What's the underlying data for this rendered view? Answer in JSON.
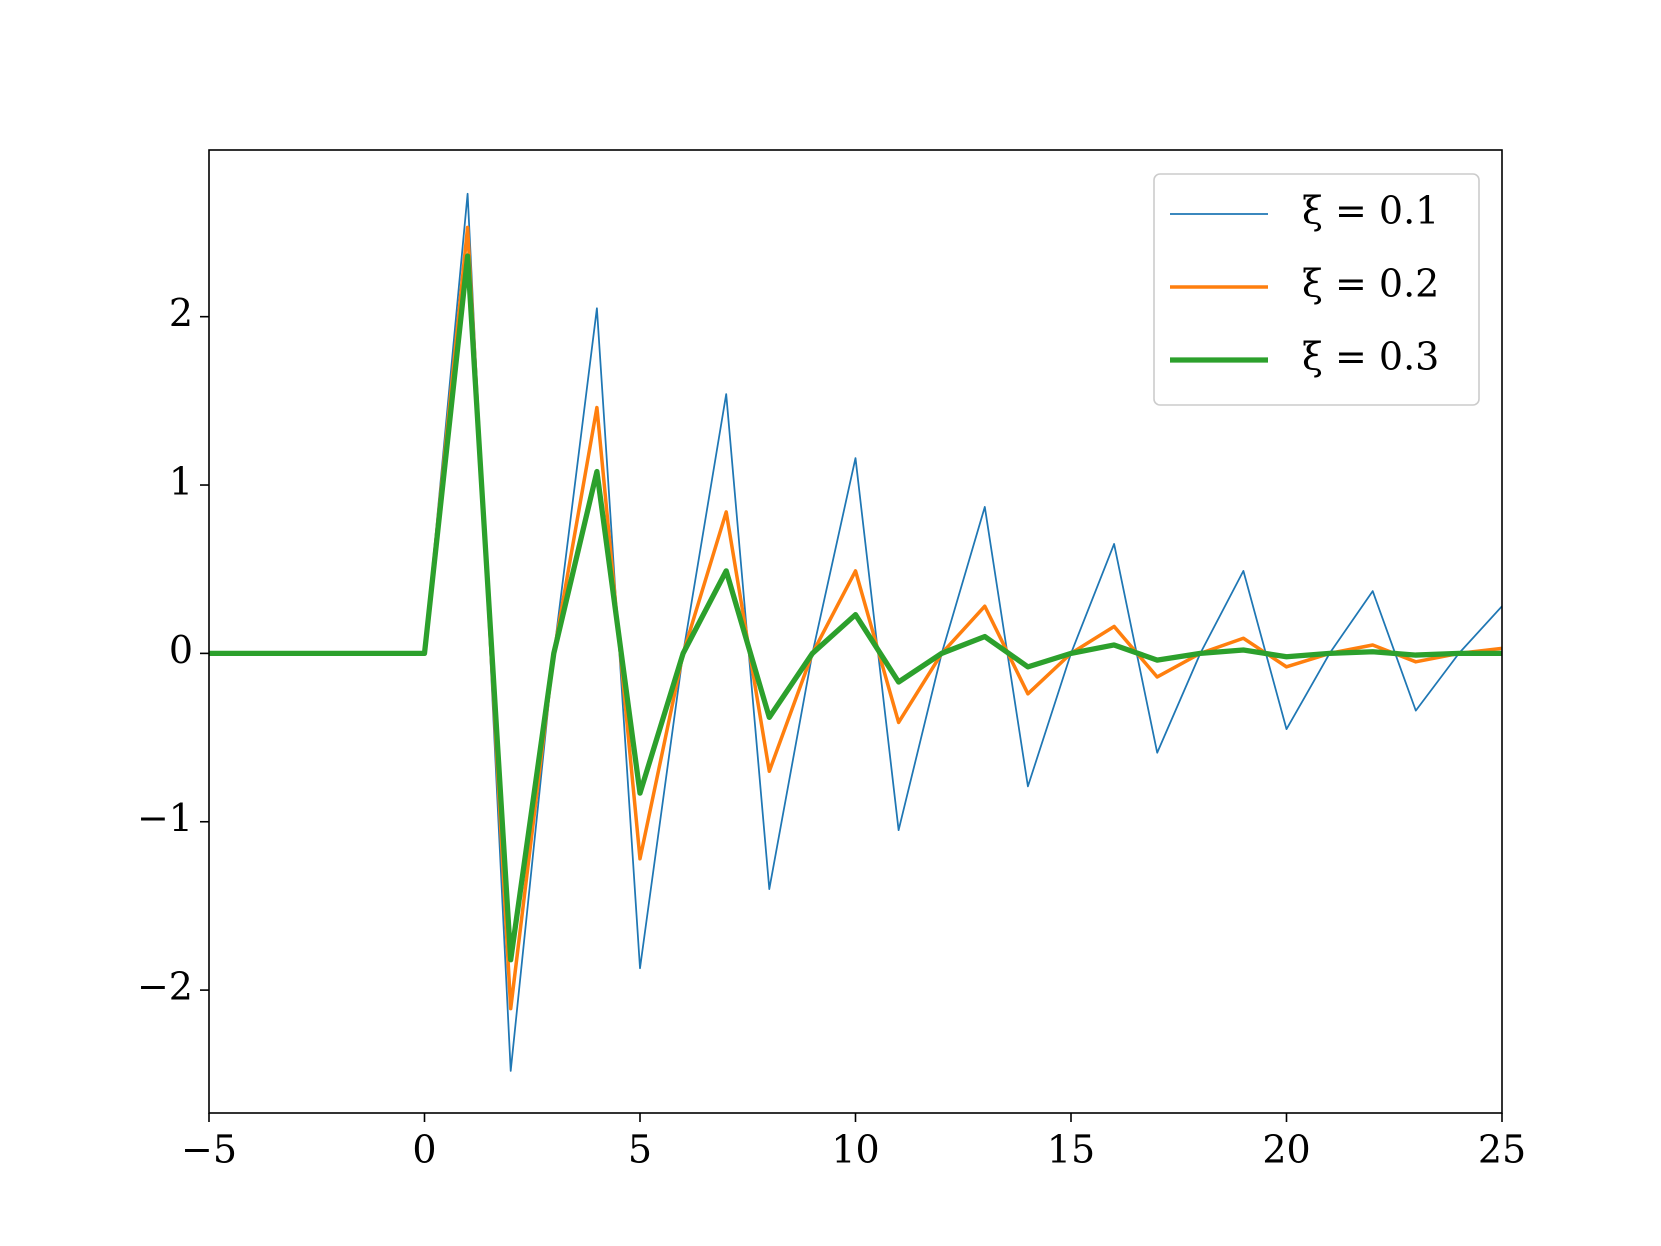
{
  "chart_data": {
    "type": "line",
    "x": [
      -5,
      -4,
      -3,
      -2,
      -1,
      0,
      1,
      2,
      3,
      4,
      5,
      6,
      7,
      8,
      9,
      10,
      11,
      12,
      13,
      14,
      15,
      16,
      17,
      18,
      19,
      20,
      21,
      22,
      23,
      24,
      25
    ],
    "series": [
      {
        "name": "ξ = 0.1",
        "color": "#1f77b4",
        "values": [
          0,
          0,
          0,
          0,
          0,
          0,
          2.73,
          -2.48,
          0,
          2.05,
          -1.87,
          0,
          1.54,
          -1.4,
          0,
          1.16,
          -1.05,
          0,
          0.87,
          -0.79,
          0,
          0.65,
          -0.59,
          0,
          0.49,
          -0.45,
          0,
          0.37,
          -0.34,
          0,
          0.28
        ]
      },
      {
        "name": "ξ = 0.2",
        "color": "#ff7f0e",
        "values": [
          0,
          0,
          0,
          0,
          0,
          0,
          2.53,
          -2.11,
          0,
          1.46,
          -1.22,
          0,
          0.84,
          -0.7,
          0,
          0.49,
          -0.41,
          0,
          0.28,
          -0.24,
          0,
          0.16,
          -0.14,
          0,
          0.09,
          -0.08,
          0,
          0.05,
          -0.05,
          0,
          0.03
        ]
      },
      {
        "name": "ξ = 0.3",
        "color": "#2ca02c",
        "values": [
          0,
          0,
          0,
          0,
          0,
          0,
          2.36,
          -1.82,
          0,
          1.08,
          -0.83,
          0,
          0.49,
          -0.38,
          0,
          0.23,
          -0.17,
          0,
          0.1,
          -0.08,
          0,
          0.05,
          -0.04,
          0,
          0.02,
          -0.02,
          0,
          0.01,
          -0.01,
          0,
          0
        ]
      }
    ],
    "xlim": [
      -5,
      25
    ],
    "xticks": [
      {
        "value": -5,
        "label": "−5"
      },
      0,
      5,
      10,
      15,
      20,
      25
    ],
    "ylim": [
      -2.73,
      2.99
    ],
    "yticks": [
      {
        "value": -2,
        "label": "−2"
      },
      {
        "value": -1,
        "label": "−1"
      },
      0,
      1,
      2
    ],
    "legend": "upper right"
  }
}
